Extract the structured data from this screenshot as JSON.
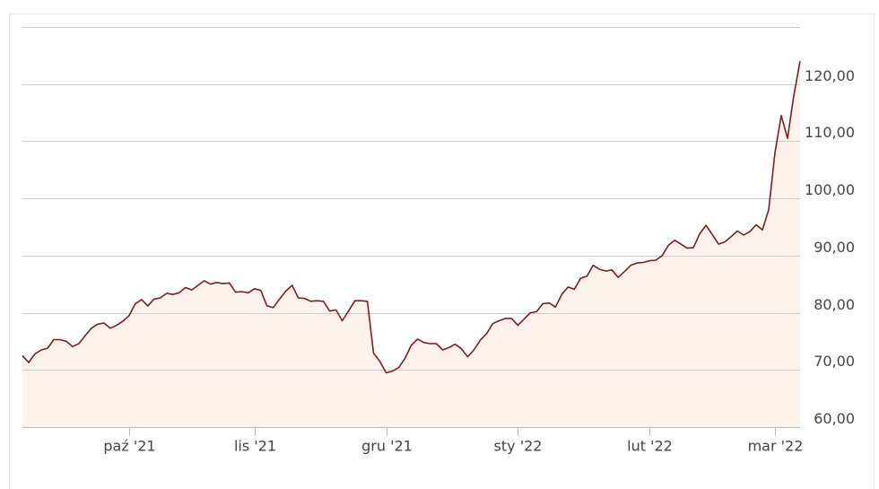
{
  "chart_data": {
    "type": "area",
    "color": "#7b1e1e",
    "fill_color": "#fdf3ec",
    "categories": [
      null,
      null,
      null,
      null,
      null,
      null,
      null,
      null,
      null,
      null,
      null,
      null,
      null,
      null,
      null,
      null,
      null,
      "paź '21",
      null,
      null,
      null,
      null,
      null,
      null,
      null,
      null,
      null,
      null,
      null,
      null,
      null,
      null,
      null,
      null,
      null,
      null,
      null,
      "lis '21",
      null,
      null,
      null,
      null,
      null,
      null,
      null,
      null,
      null,
      null,
      null,
      null,
      null,
      null,
      null,
      null,
      null,
      null,
      null,
      null,
      "gru '21",
      null,
      null,
      null,
      null,
      null,
      null,
      null,
      null,
      null,
      null,
      null,
      null,
      null,
      null,
      null,
      null,
      null,
      null,
      null,
      null,
      "sty '22",
      null,
      null,
      null,
      null,
      null,
      null,
      null,
      null,
      null,
      null,
      null,
      null,
      null,
      null,
      null,
      null,
      null,
      null,
      null,
      null,
      "lut '22",
      null,
      null,
      null,
      null,
      null,
      null,
      null,
      null,
      null,
      null,
      null,
      null,
      null,
      null,
      null,
      null,
      null,
      null,
      null,
      "mar '22",
      null,
      null,
      null,
      null
    ],
    "values": [
      72.5,
      71.3,
      72.8,
      73.5,
      73.8,
      75.3,
      75.3,
      75,
      74.1,
      74.6,
      76,
      77.3,
      78,
      78.2,
      77.3,
      77.8,
      78.5,
      79.5,
      81.6,
      82.3,
      81.2,
      82.4,
      82.6,
      83.4,
      83.2,
      83.5,
      84.4,
      84,
      84.8,
      85.6,
      85,
      85.3,
      85.1,
      85.2,
      83.6,
      83.7,
      83.5,
      84.2,
      83.9,
      81.2,
      80.9,
      82.4,
      83.8,
      84.8,
      82.6,
      82.5,
      82,
      82.1,
      82,
      80.3,
      80.5,
      78.6,
      80.3,
      82.1,
      82.1,
      82,
      72.9,
      71.5,
      69.5,
      69.8,
      70.4,
      72,
      74.3,
      75.4,
      74.8,
      74.6,
      74.6,
      73.5,
      73.9,
      74.5,
      73.7,
      72.3,
      73.5,
      75.2,
      76.3,
      78.1,
      78.6,
      79,
      79,
      77.8,
      78.9,
      80,
      80.2,
      81.6,
      81.7,
      81,
      83.2,
      84.5,
      84.1,
      86,
      86.4,
      88.3,
      87.6,
      87.3,
      87.5,
      86.2,
      87.2,
      88.3,
      88.7,
      88.8,
      89.1,
      89.2,
      90,
      91.8,
      92.7,
      92,
      91.3,
      91.4,
      93.8,
      95.3,
      93.7,
      92,
      92.4,
      93.3,
      94.3,
      93.6,
      94.2,
      95.4,
      94.5,
      98,
      108,
      114.5,
      110.5,
      118,
      124
    ],
    "ylim": [
      60,
      130
    ],
    "yticks": [
      {
        "value": 60,
        "label": "60,00"
      },
      {
        "value": 70,
        "label": "70,00"
      },
      {
        "value": 80,
        "label": "80,00"
      },
      {
        "value": 90,
        "label": "90,00"
      },
      {
        "value": 100,
        "label": "100,00"
      },
      {
        "value": 110,
        "label": "110,00"
      },
      {
        "value": 120,
        "label": "120,00"
      }
    ],
    "grid": true
  }
}
